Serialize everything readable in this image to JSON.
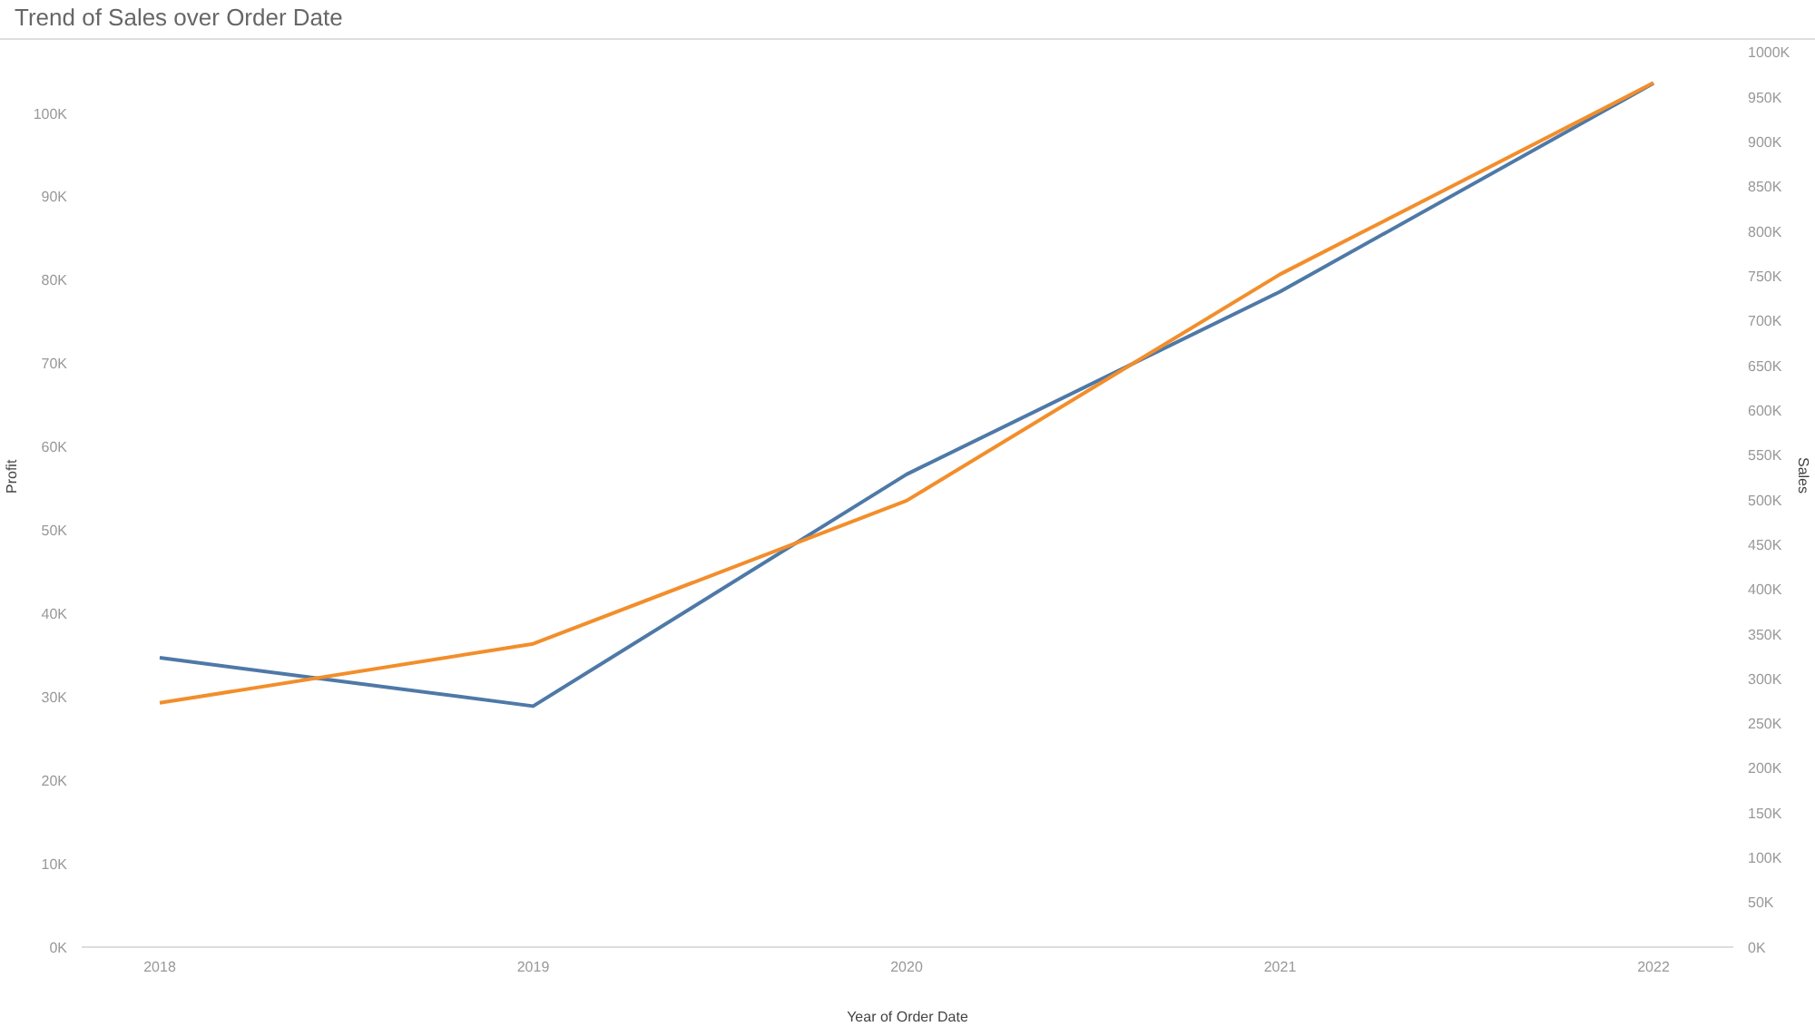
{
  "chart_data": {
    "type": "line",
    "title": "Trend of Sales over Order Date",
    "xlabel": "Year of Order Date",
    "ylabel": "Profit",
    "y2label": "Sales",
    "categories": [
      "2018",
      "2019",
      "2020",
      "2021",
      "2022"
    ],
    "series": [
      {
        "color": "#4e79a7",
        "values": [
          34700,
          28900,
          56700,
          78600,
          103600
        ]
      },
      {
        "color": "#f28e2b",
        "axis": "y2",
        "values": [
          273000,
          339000,
          499000,
          752000,
          966000
        ]
      }
    ],
    "ylim": [
      0,
      108800
    ],
    "yticks": [
      {
        "value": 0,
        "label": "0K"
      },
      {
        "value": 10000,
        "label": "10K"
      },
      {
        "value": 20000,
        "label": "20K"
      },
      {
        "value": 30000,
        "label": "30K"
      },
      {
        "value": 40000,
        "label": "40K"
      },
      {
        "value": 50000,
        "label": "50K"
      },
      {
        "value": 60000,
        "label": "60K"
      },
      {
        "value": 70000,
        "label": "70K"
      },
      {
        "value": 80000,
        "label": "80K"
      },
      {
        "value": 90000,
        "label": "90K"
      },
      {
        "value": 100000,
        "label": "100K"
      }
    ],
    "y2lim": [
      0,
      1014000
    ],
    "y2ticks": [
      {
        "value": 0,
        "label": "0K"
      },
      {
        "value": 50000,
        "label": "50K"
      },
      {
        "value": 100000,
        "label": "100K"
      },
      {
        "value": 150000,
        "label": "150K"
      },
      {
        "value": 200000,
        "label": "200K"
      },
      {
        "value": 250000,
        "label": "250K"
      },
      {
        "value": 300000,
        "label": "300K"
      },
      {
        "value": 350000,
        "label": "350K"
      },
      {
        "value": 400000,
        "label": "400K"
      },
      {
        "value": 450000,
        "label": "450K"
      },
      {
        "value": 500000,
        "label": "500K"
      },
      {
        "value": 550000,
        "label": "550K"
      },
      {
        "value": 600000,
        "label": "600K"
      },
      {
        "value": 650000,
        "label": "650K"
      },
      {
        "value": 700000,
        "label": "700K"
      },
      {
        "value": 750000,
        "label": "750K"
      },
      {
        "value": 800000,
        "label": "800K"
      },
      {
        "value": 850000,
        "label": "850K"
      },
      {
        "value": 900000,
        "label": "900K"
      },
      {
        "value": 950000,
        "label": "950K"
      },
      {
        "value": 1000000,
        "label": "1000K"
      }
    ]
  }
}
